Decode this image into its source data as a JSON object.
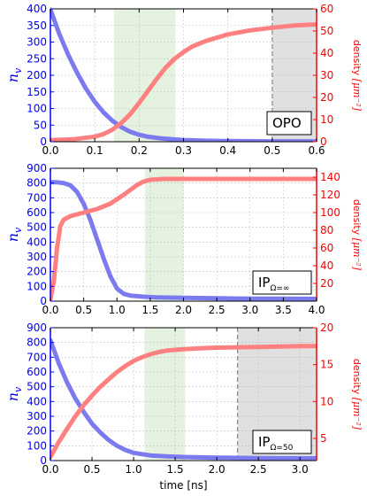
{
  "chart_data": [
    {
      "type": "line",
      "annotation": "OPO",
      "ylabel_left": "n_v",
      "ylabel_right": "density",
      "ylabel_right_unit": "[μm⁻²]",
      "x_ticks": [
        "0.0",
        "0.1",
        "0.2",
        "0.3",
        "0.4",
        "0.5",
        "0.6"
      ],
      "x_tick_values": [
        0,
        0.1,
        0.2,
        0.3,
        0.4,
        0.5,
        0.6
      ],
      "y_left_ticks": [
        "0",
        "50",
        "100",
        "150",
        "200",
        "250",
        "300",
        "350",
        "400"
      ],
      "y_left_tick_values": [
        0,
        50,
        100,
        150,
        200,
        250,
        300,
        350,
        400
      ],
      "y_right_ticks": [
        "0",
        "10",
        "20",
        "30",
        "40",
        "50",
        "60"
      ],
      "y_right_tick_values": [
        0,
        10,
        20,
        30,
        40,
        50,
        60
      ],
      "xlim": [
        0,
        0.6
      ],
      "ylim_left": [
        0,
        400
      ],
      "ylim_right": [
        0,
        60
      ],
      "green_region": [
        0.143,
        0.282
      ],
      "gray_region": [
        0.5,
        0.6
      ],
      "dashed_line": 0.5,
      "series": [
        {
          "axis": "left",
          "color": "#7b7bef",
          "x": [
            0,
            0.02,
            0.04,
            0.06,
            0.08,
            0.1,
            0.12,
            0.14,
            0.16,
            0.18,
            0.2,
            0.22,
            0.25,
            0.3,
            0.35,
            0.4,
            0.5,
            0.6
          ],
          "values": [
            398,
            325,
            262,
            208,
            160,
            120,
            88,
            63,
            44,
            30,
            21,
            15,
            10,
            5,
            3,
            2,
            1,
            1
          ]
        },
        {
          "axis": "right",
          "color": "#ff8080",
          "x": [
            0,
            0.05,
            0.1,
            0.12,
            0.14,
            0.16,
            0.18,
            0.2,
            0.22,
            0.24,
            0.26,
            0.28,
            0.3,
            0.32,
            0.35,
            0.4,
            0.45,
            0.5,
            0.55,
            0.6
          ],
          "values": [
            0.7,
            1.1,
            2.3,
            3.5,
            5.5,
            8.5,
            12.5,
            17.5,
            23,
            28.5,
            33.5,
            37.5,
            40.5,
            43,
            45.5,
            48.5,
            50.3,
            51.5,
            52.5,
            53
          ]
        }
      ]
    },
    {
      "type": "line",
      "annotation": "IP",
      "annotation_sub": "Ω=∞",
      "ylabel_left": "n_v",
      "ylabel_right": "density",
      "ylabel_right_unit": "[μm⁻²]",
      "x_ticks": [
        "0.0",
        "0.5",
        "1.0",
        "1.5",
        "2.0",
        "2.5",
        "3.0",
        "3.5",
        "4.0"
      ],
      "x_tick_values": [
        0,
        0.5,
        1,
        1.5,
        2,
        2.5,
        3,
        3.5,
        4
      ],
      "y_left_ticks": [
        "0",
        "100",
        "200",
        "300",
        "400",
        "500",
        "600",
        "700",
        "800",
        "900"
      ],
      "y_left_tick_values": [
        0,
        100,
        200,
        300,
        400,
        500,
        600,
        700,
        800,
        900
      ],
      "y_right_ticks": [
        "20",
        "40",
        "60",
        "80",
        "100",
        "120",
        "140"
      ],
      "y_right_tick_values": [
        20,
        40,
        60,
        80,
        100,
        120,
        140
      ],
      "xlim": [
        0,
        4
      ],
      "ylim_left": [
        0,
        900
      ],
      "ylim_right": [
        0,
        150
      ],
      "green_region": [
        1.42,
        2.0
      ],
      "series": [
        {
          "axis": "left",
          "color": "#7b7bef",
          "x": [
            0,
            0.1,
            0.2,
            0.3,
            0.4,
            0.5,
            0.6,
            0.7,
            0.8,
            0.9,
            1.0,
            1.1,
            1.2,
            1.4,
            1.6,
            2.0,
            2.5,
            3.0,
            3.5,
            4.0
          ],
          "values": [
            805,
            805,
            800,
            785,
            740,
            660,
            550,
            420,
            290,
            170,
            85,
            50,
            38,
            30,
            26,
            22,
            19,
            17,
            16,
            15
          ]
        },
        {
          "axis": "right",
          "color": "#ff8080",
          "x": [
            0,
            0.05,
            0.1,
            0.15,
            0.2,
            0.3,
            0.5,
            0.7,
            0.9,
            1.1,
            1.3,
            1.4,
            1.5,
            1.7,
            2.0,
            2.5,
            3.0,
            3.5,
            4.0
          ],
          "values": [
            2,
            22,
            60,
            85,
            92,
            96,
            100,
            104,
            110,
            120,
            131,
            135,
            137,
            138,
            138,
            138,
            138,
            138,
            138
          ]
        }
      ]
    },
    {
      "type": "line",
      "annotation": "IP",
      "annotation_sub": "Ω=50",
      "ylabel_left": "n_v",
      "ylabel_right": "density",
      "ylabel_right_unit": "[μm⁻²]",
      "xlabel": "time [ns]",
      "x_ticks": [
        "0.0",
        "0.5",
        "1.0",
        "1.5",
        "2.0",
        "2.5",
        "3.0"
      ],
      "x_tick_values": [
        0,
        0.5,
        1,
        1.5,
        2,
        2.5,
        3
      ],
      "y_left_ticks": [
        "0",
        "100",
        "200",
        "300",
        "400",
        "500",
        "600",
        "700",
        "800",
        "900"
      ],
      "y_left_tick_values": [
        0,
        100,
        200,
        300,
        400,
        500,
        600,
        700,
        800,
        900
      ],
      "y_right_ticks": [
        "5",
        "10",
        "15",
        "20"
      ],
      "y_right_tick_values": [
        5,
        10,
        15,
        20
      ],
      "xlim": [
        0,
        3.2
      ],
      "ylim_left": [
        0,
        900
      ],
      "ylim_right": [
        2,
        20
      ],
      "green_region": [
        1.13,
        1.62
      ],
      "gray_region": [
        2.25,
        3.2
      ],
      "dashed_line": 2.25,
      "series": [
        {
          "axis": "left",
          "color": "#7b7bef",
          "x": [
            0,
            0.1,
            0.2,
            0.3,
            0.4,
            0.5,
            0.6,
            0.7,
            0.8,
            0.9,
            1.0,
            1.2,
            1.4,
            1.6,
            2.0,
            2.5,
            3.0,
            3.2
          ],
          "values": [
            815,
            660,
            530,
            420,
            330,
            250,
            190,
            140,
            100,
            72,
            52,
            35,
            28,
            24,
            20,
            17,
            15,
            15
          ]
        },
        {
          "axis": "right",
          "color": "#ff8080",
          "x": [
            0,
            0.1,
            0.2,
            0.3,
            0.4,
            0.5,
            0.6,
            0.7,
            0.8,
            0.9,
            1.0,
            1.1,
            1.2,
            1.3,
            1.4,
            1.5,
            1.6,
            1.8,
            2.0,
            2.5,
            3.0,
            3.2
          ],
          "values": [
            2.5,
            4.5,
            6.3,
            8,
            9.5,
            10.8,
            12,
            13,
            14,
            14.8,
            15.5,
            16,
            16.4,
            16.7,
            16.9,
            17,
            17.1,
            17.2,
            17.3,
            17.4,
            17.5,
            17.5
          ]
        }
      ]
    }
  ]
}
